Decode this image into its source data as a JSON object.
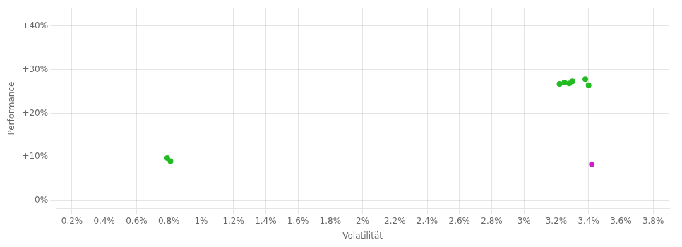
{
  "chart_data": {
    "type": "scatter",
    "xlabel": "Volatilität",
    "ylabel": "Performance",
    "xlim": [
      0.001,
      0.039
    ],
    "ylim": [
      -0.018,
      0.44
    ],
    "xticks": [
      {
        "value": 0.002,
        "label": "0.2%"
      },
      {
        "value": 0.004,
        "label": "0.4%"
      },
      {
        "value": 0.006,
        "label": "0.6%"
      },
      {
        "value": 0.008,
        "label": "0.8%"
      },
      {
        "value": 0.01,
        "label": "1%"
      },
      {
        "value": 0.012,
        "label": "1.2%"
      },
      {
        "value": 0.014,
        "label": "1.4%"
      },
      {
        "value": 0.016,
        "label": "1.6%"
      },
      {
        "value": 0.018,
        "label": "1.8%"
      },
      {
        "value": 0.02,
        "label": "2%"
      },
      {
        "value": 0.022,
        "label": "2.2%"
      },
      {
        "value": 0.024,
        "label": "2.4%"
      },
      {
        "value": 0.026,
        "label": "2.6%"
      },
      {
        "value": 0.028,
        "label": "2.8%"
      },
      {
        "value": 0.03,
        "label": "3%"
      },
      {
        "value": 0.032,
        "label": "3.2%"
      },
      {
        "value": 0.034,
        "label": "3.4%"
      },
      {
        "value": 0.036,
        "label": "3.6%"
      },
      {
        "value": 0.038,
        "label": "3.8%"
      }
    ],
    "yticks": [
      {
        "value": 0.0,
        "label": "0%"
      },
      {
        "value": 0.1,
        "label": "+10%"
      },
      {
        "value": 0.2,
        "label": "+20%"
      },
      {
        "value": 0.3,
        "label": "+30%"
      },
      {
        "value": 0.4,
        "label": "+40%"
      }
    ],
    "grid": true,
    "series": [
      {
        "color": "#22bb22",
        "x": [
          0.0079,
          0.0081,
          0.0322,
          0.0325,
          0.0328,
          0.033,
          0.0338,
          0.034
        ],
        "values": [
          0.097,
          0.09,
          0.267,
          0.27,
          0.268,
          0.273,
          0.278,
          0.264
        ]
      },
      {
        "color": "#cc22cc",
        "x": [
          0.0342
        ],
        "values": [
          0.083
        ]
      }
    ]
  }
}
